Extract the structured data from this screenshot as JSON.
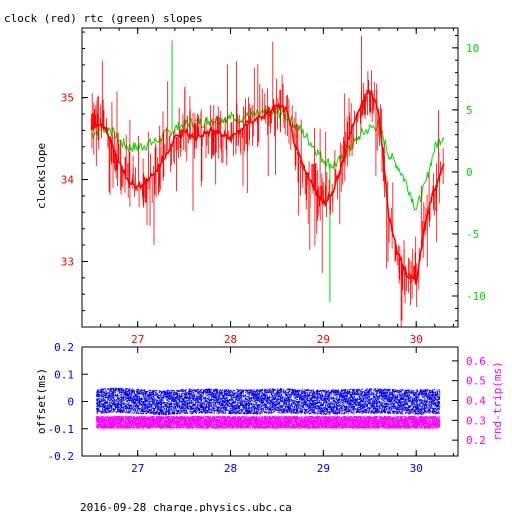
{
  "title": "clock (red) rtc (green) slopes",
  "footer": "2016-09-28 charge.physics.ubc.ca",
  "colors": {
    "red": "#ff0000",
    "green": "#00dd00",
    "blue": "#0000ff",
    "magenta": "#ff00ff",
    "black": "#000000"
  },
  "chart_data": [
    {
      "type": "line",
      "title": "clock (red) rtc (green) slopes",
      "x": [
        26.5,
        26.6,
        26.7,
        26.8,
        26.9,
        27.0,
        27.1,
        27.2,
        27.3,
        27.4,
        27.5,
        27.6,
        27.7,
        27.8,
        27.9,
        28.0,
        28.1,
        28.2,
        28.3,
        28.4,
        28.5,
        28.6,
        28.7,
        28.8,
        28.9,
        29.0,
        29.1,
        29.2,
        29.3,
        29.4,
        29.5,
        29.6,
        29.7,
        29.8,
        29.9,
        30.0,
        30.1,
        30.2,
        30.3
      ],
      "xlim": [
        26.4,
        30.45
      ],
      "x_ticks": [
        27,
        28,
        29,
        30
      ],
      "ylabel": "clockslope",
      "ylim": [
        32.2,
        35.85
      ],
      "y_ticks": [
        33,
        34,
        35
      ],
      "y2lim": [
        -12.5,
        11.6
      ],
      "y2_ticks": [
        -10,
        -5,
        0,
        5,
        10
      ],
      "series": [
        {
          "axis": "left",
          "values": [
            34.6,
            34.7,
            34.5,
            34.2,
            34.0,
            33.9,
            34.0,
            34.1,
            34.3,
            34.5,
            34.6,
            34.5,
            34.55,
            34.6,
            34.55,
            34.5,
            34.6,
            34.7,
            34.75,
            34.8,
            34.9,
            34.85,
            34.4,
            34.1,
            33.9,
            33.7,
            33.85,
            34.2,
            34.6,
            34.9,
            35.1,
            34.8,
            33.6,
            33.1,
            32.85,
            32.75,
            33.5,
            33.9,
            34.2
          ]
        },
        {
          "axis": "right",
          "values": [
            3.0,
            3.5,
            3.5,
            2.5,
            2.0,
            2.0,
            2.2,
            2.5,
            3.0,
            3.5,
            3.8,
            4.0,
            4.0,
            4.2,
            4.3,
            4.4,
            4.3,
            4.5,
            4.6,
            4.7,
            4.8,
            4.5,
            3.8,
            3.0,
            2.0,
            1.0,
            0.5,
            1.0,
            2.0,
            3.0,
            3.5,
            3.8,
            1.5,
            0.5,
            -1.0,
            -3.0,
            -1.0,
            2.0,
            3.0
          ]
        }
      ],
      "spikes_green": [
        {
          "x": 27.37,
          "value": 10.6
        },
        {
          "x": 29.07,
          "value": -10.5
        }
      ]
    },
    {
      "type": "scatter",
      "x": [
        26.55,
        26.75,
        27.0,
        27.25,
        27.5,
        27.75,
        28.0,
        28.25,
        28.5,
        28.75,
        29.0,
        29.25,
        29.5,
        29.75,
        30.0,
        30.25
      ],
      "xlim": [
        26.4,
        30.45
      ],
      "x_ticks": [
        27,
        28,
        29,
        30
      ],
      "ylabel": "offset(ms)",
      "ylim": [
        -0.2,
        0.2
      ],
      "y_ticks": [
        -0.2,
        -0.1,
        0,
        0.1,
        0.2
      ],
      "y2label": "rnd-trip(ms)",
      "y2lim": [
        0.12,
        0.67
      ],
      "y2_ticks": [
        0.2,
        0.3,
        0.4,
        0.5,
        0.6
      ],
      "series": [
        {
          "axis": "left",
          "values": [
            0.0,
            0.005,
            0.0,
            -0.005,
            0.0,
            0.002,
            0.0,
            -0.002,
            0.003,
            0.0,
            -0.003,
            0.0,
            0.002,
            0.0,
            -0.002,
            0.0
          ],
          "spread": 0.045
        },
        {
          "axis": "right",
          "values": [
            0.29,
            0.29,
            0.29,
            0.29,
            0.29,
            0.29,
            0.29,
            0.29,
            0.29,
            0.29,
            0.29,
            0.29,
            0.29,
            0.29,
            0.29,
            0.29
          ],
          "spread": 0.03
        }
      ]
    }
  ]
}
